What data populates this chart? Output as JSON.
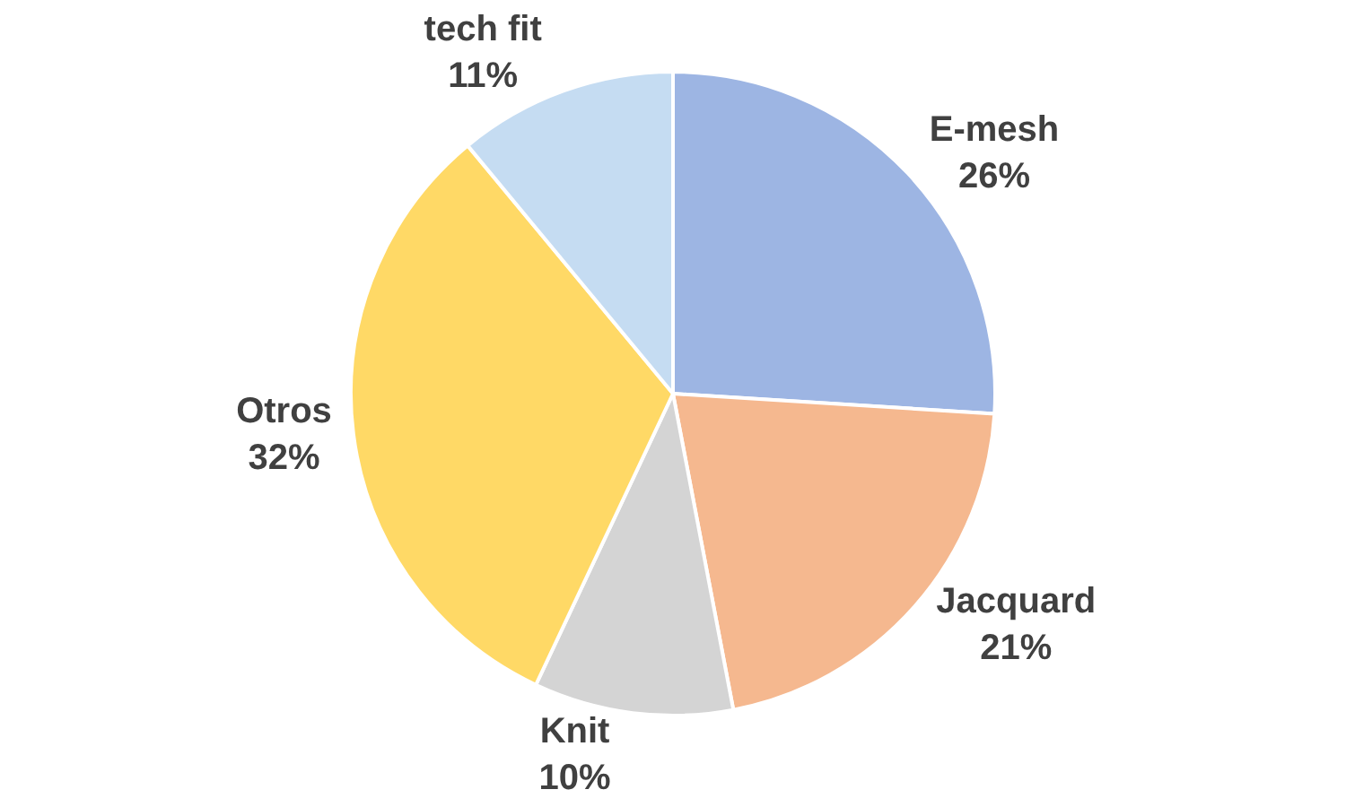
{
  "chart_data": {
    "type": "pie",
    "categories": [
      "E-mesh",
      "Jacquard",
      "Knit",
      "Otros",
      "tech fit"
    ],
    "values": [
      26,
      21,
      10,
      32,
      11
    ],
    "value_labels": [
      "26%",
      "21%",
      "10%",
      "32%",
      "11%"
    ],
    "colors": [
      "#9db5e3",
      "#f5b88f",
      "#d4d4d4",
      "#ffd966",
      "#c5dcf2"
    ],
    "legend": false
  }
}
